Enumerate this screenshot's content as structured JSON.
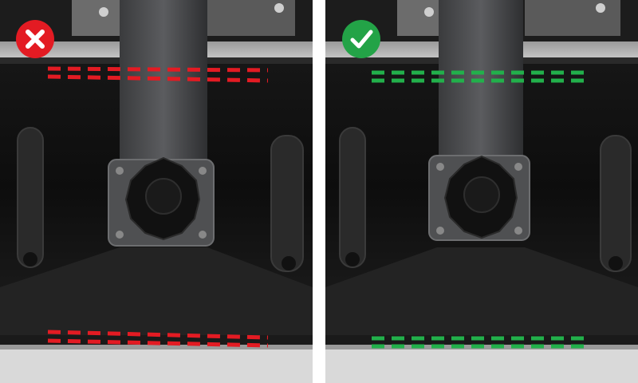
{
  "comparison": {
    "incorrect": {
      "status": "incorrect",
      "icon": "x-mark-icon",
      "badge_color": "#e31b23",
      "line_color": "#e31b23",
      "lines_parallel": false
    },
    "correct": {
      "status": "correct",
      "icon": "check-mark-icon",
      "badge_color": "#23a347",
      "line_color": "#22b04b",
      "lines_parallel": true
    }
  }
}
